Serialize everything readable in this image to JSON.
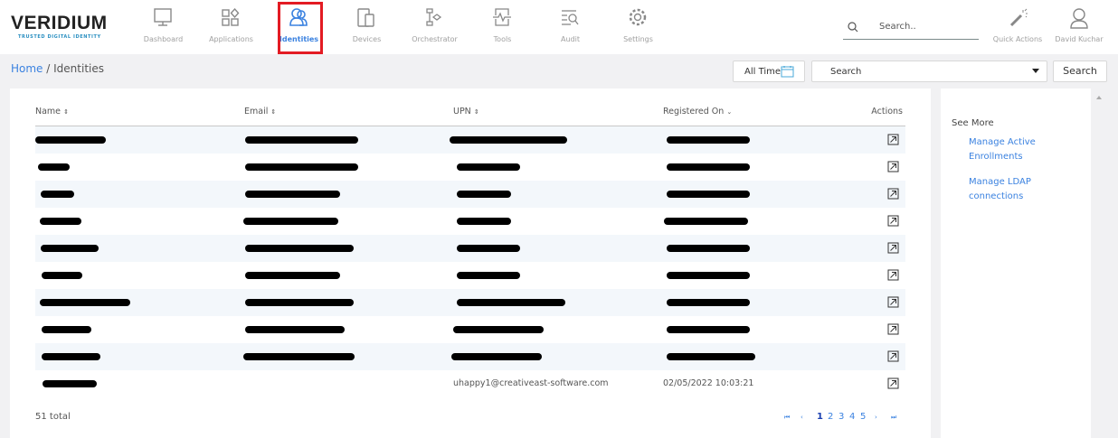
{
  "brand": {
    "name": "VERIDIUM",
    "tagline": "TRUSTED DIGITAL IDENTITY",
    "accent": "#2a8fc1"
  },
  "nav": [
    {
      "label": "Dashboard",
      "icon": "monitor-icon"
    },
    {
      "label": "Applications",
      "icon": "apps-icon"
    },
    {
      "label": "Identities",
      "icon": "users-icon",
      "active": true
    },
    {
      "label": "Devices",
      "icon": "devices-icon"
    },
    {
      "label": "Orchestrator",
      "icon": "flow-icon"
    },
    {
      "label": "Tools",
      "icon": "pulse-icon"
    },
    {
      "label": "Audit",
      "icon": "audit-search-icon"
    },
    {
      "label": "Settings",
      "icon": "gear-icon"
    }
  ],
  "header": {
    "search_placeholder": "Search..",
    "quick_actions": "Quick Actions",
    "user": "David Kuchar"
  },
  "breadcrumb": {
    "home": "Home",
    "sep": "/",
    "current": "Identities"
  },
  "filters": {
    "time": "All Time",
    "select": "Search",
    "search_button": "Search"
  },
  "table": {
    "columns": [
      "Name",
      "Email",
      "UPN",
      "Registered On",
      "Actions"
    ],
    "rows": [
      {
        "upn": "",
        "registered": ""
      },
      {
        "upn": "",
        "registered": ""
      },
      {
        "upn": "",
        "registered": ""
      },
      {
        "upn": "",
        "registered": ""
      },
      {
        "upn": "",
        "registered": ""
      },
      {
        "upn": "",
        "registered": ""
      },
      {
        "upn": "",
        "registered": ""
      },
      {
        "upn": "",
        "registered": ""
      },
      {
        "upn": "",
        "registered": ""
      },
      {
        "upn": "uhappy1@creativeast-software.com",
        "registered": "02/05/2022 10:03:21"
      }
    ],
    "total": "51 total",
    "pages": [
      "1",
      "2",
      "3",
      "4",
      "5"
    ],
    "current_page": "1"
  },
  "side": {
    "title": "See More",
    "links": [
      "Manage Active Enrollments",
      "Manage LDAP connections"
    ]
  },
  "colors": {
    "accent": "#3b82e0",
    "highlight": "#e31b23"
  }
}
